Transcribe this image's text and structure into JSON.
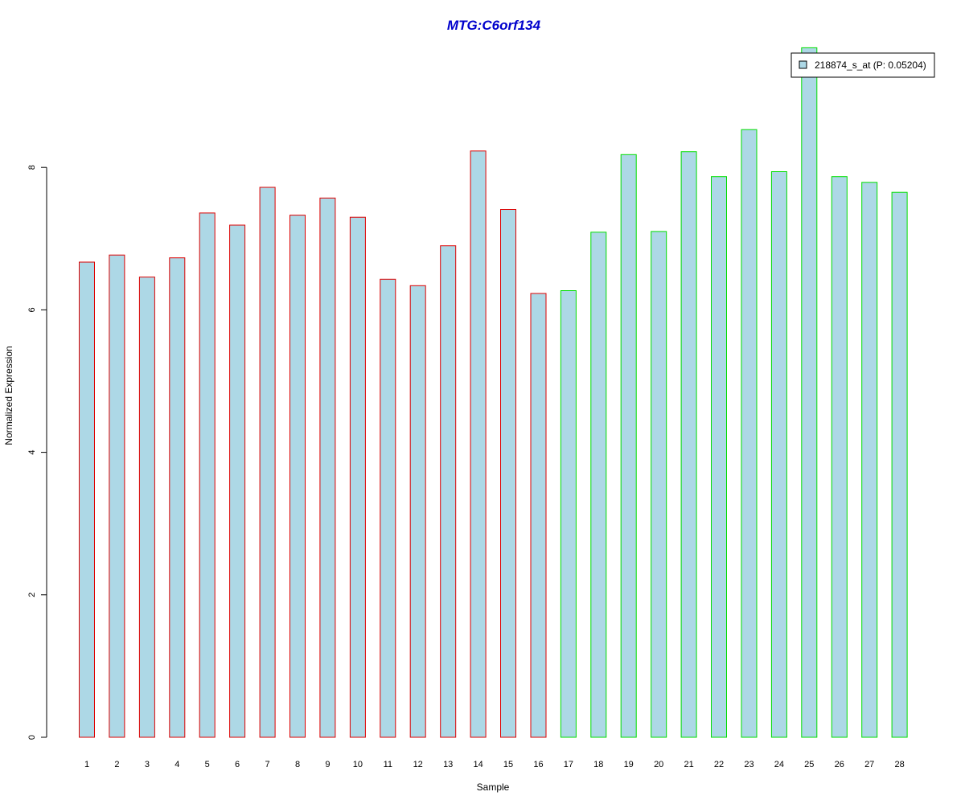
{
  "chart_data": {
    "type": "bar",
    "title": "MTG:C6orf134",
    "xlabel": "Sample",
    "ylabel": "Normalized Expression",
    "ylim": [
      0,
      9.8
    ],
    "yticks": [
      0,
      2,
      4,
      6,
      8
    ],
    "categories": [
      "1",
      "2",
      "3",
      "4",
      "5",
      "6",
      "7",
      "8",
      "9",
      "10",
      "11",
      "12",
      "13",
      "14",
      "15",
      "16",
      "17",
      "18",
      "19",
      "20",
      "21",
      "22",
      "23",
      "24",
      "25",
      "26",
      "27",
      "28"
    ],
    "series": [
      {
        "name": "218874_s_at (P: 0.05204)",
        "values": [
          6.67,
          6.77,
          6.46,
          6.73,
          7.36,
          7.19,
          7.72,
          7.33,
          7.57,
          7.3,
          6.43,
          6.34,
          6.9,
          8.23,
          7.41,
          6.23,
          6.27,
          7.09,
          8.18,
          7.1,
          8.22,
          7.87,
          8.53,
          7.94,
          9.68,
          7.87,
          7.79,
          7.65
        ]
      }
    ],
    "group_colors": [
      "#dd0000",
      "#dd0000",
      "#dd0000",
      "#dd0000",
      "#dd0000",
      "#dd0000",
      "#dd0000",
      "#dd0000",
      "#dd0000",
      "#dd0000",
      "#dd0000",
      "#dd0000",
      "#dd0000",
      "#dd0000",
      "#dd0000",
      "#dd0000",
      "#00dd00",
      "#00dd00",
      "#00dd00",
      "#00dd00",
      "#00dd00",
      "#00dd00",
      "#00dd00",
      "#00dd00",
      "#00dd00",
      "#00dd00",
      "#00dd00",
      "#00dd00"
    ],
    "bar_fill": "#add8e6",
    "title_color": "#0000cc",
    "legend_position": "top-right",
    "grid": false
  }
}
